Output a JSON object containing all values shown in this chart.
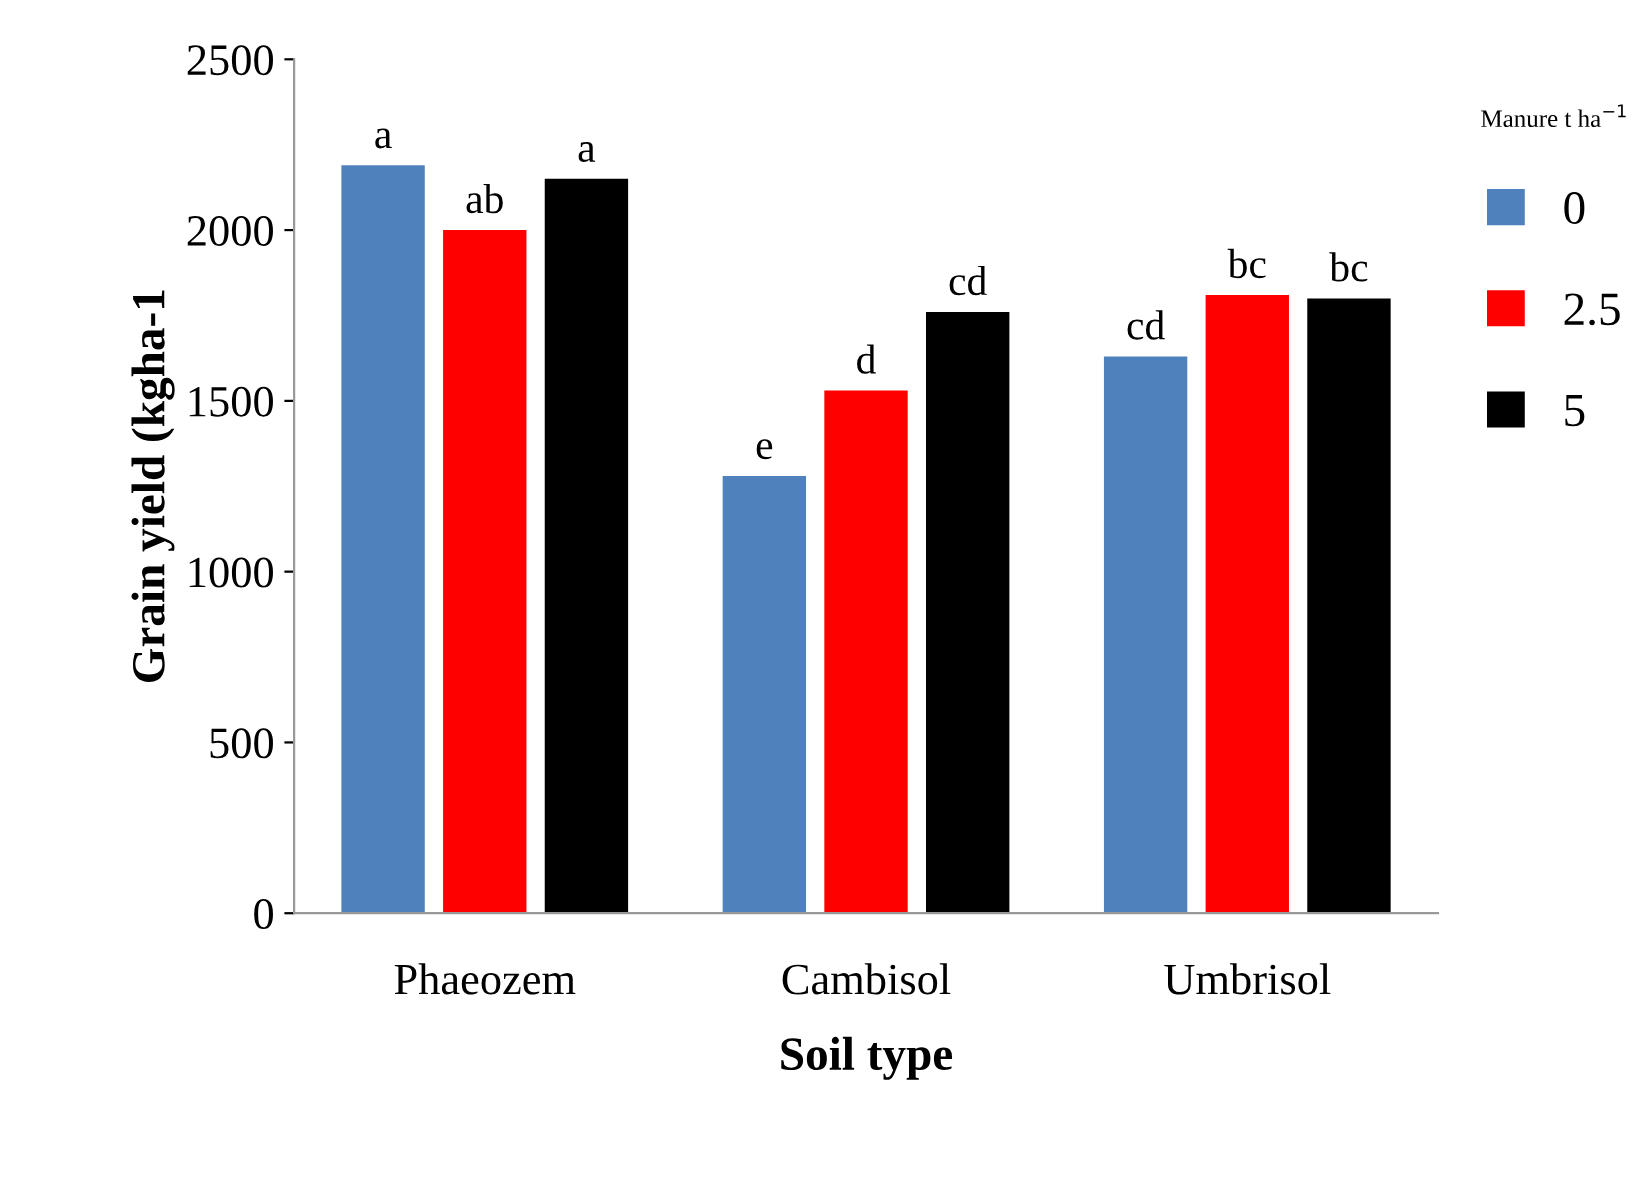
{
  "chart_data": {
    "type": "bar",
    "xlabel": "Soil type",
    "ylabel": "Grain yield (kgha-1",
    "legend_title": "Manure t ha$^{−1}$",
    "categories": [
      "Phaeozem",
      "Cambisol",
      "Umbrisol"
    ],
    "series": [
      {
        "name": "0",
        "color": "#4f81bd",
        "values": [
          2190,
          1280,
          1630
        ],
        "value_labels": [
          "a",
          "e",
          "cd"
        ]
      },
      {
        "name": "2.5",
        "color": "#ff0000",
        "values": [
          2000,
          1530,
          1810
        ],
        "value_labels": [
          "ab",
          "d",
          "bc"
        ]
      },
      {
        "name": "5",
        "color": "#000000",
        "values": [
          2150,
          1760,
          1800
        ],
        "value_labels": [
          "a",
          "cd",
          "bc"
        ]
      }
    ],
    "ylim": [
      0,
      2500
    ],
    "yticks": [
      0,
      500,
      1000,
      1500,
      2000,
      2500
    ],
    "grid": false,
    "legend": "right"
  }
}
